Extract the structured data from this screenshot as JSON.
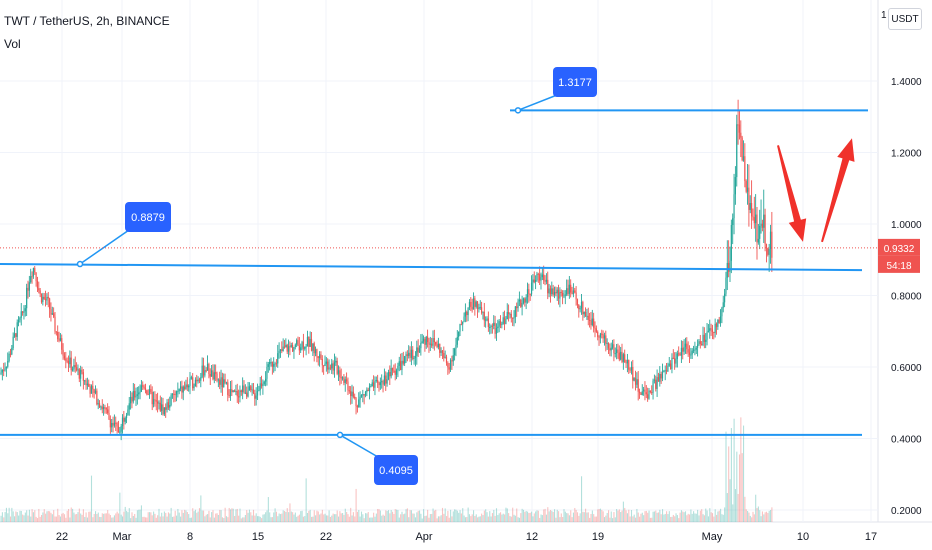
{
  "header": {
    "symbol": "TWT / TetherUS, 2h, BINANCE",
    "volume_label": "Vol",
    "currency": "USDT"
  },
  "colors": {
    "up": "#26a69a",
    "down": "#ef5350",
    "level_line": "#2196f3",
    "callout_bg": "#2962ff",
    "arrow": "#f0312b",
    "price_tag": "#ef5350"
  },
  "chart_data": {
    "type": "candlestick",
    "x_ticks": [
      "22",
      "Mar",
      "8",
      "15",
      "22",
      "Apr",
      "12",
      "19",
      "May",
      "10",
      "17"
    ],
    "y_ticks": [
      "0.2000",
      "0.4000",
      "0.6000",
      "0.8000",
      "1.0000",
      "1.2000",
      "1.4000"
    ],
    "y_range": [
      0.2,
      1.6
    ],
    "current_price": "0.9332",
    "countdown": "54:18",
    "top_partial_tick": "1",
    "callouts": [
      "0.8879",
      "1.3177",
      "0.4095"
    ],
    "levels": [
      {
        "label": "0.8879",
        "price_start": 0.888,
        "price_end": 0.871
      },
      {
        "label": "1.3177",
        "price_start": 1.318,
        "price_end": 1.318
      },
      {
        "label": "0.4095",
        "price_start": 0.41,
        "price_end": 0.41
      }
    ],
    "price_path": [
      [
        0,
        0.58
      ],
      [
        8,
        0.62
      ],
      [
        16,
        0.7
      ],
      [
        24,
        0.76
      ],
      [
        30,
        0.86
      ],
      [
        34,
        0.88
      ],
      [
        40,
        0.8
      ],
      [
        48,
        0.78
      ],
      [
        56,
        0.7
      ],
      [
        64,
        0.64
      ],
      [
        72,
        0.6
      ],
      [
        80,
        0.58
      ],
      [
        90,
        0.54
      ],
      [
        100,
        0.5
      ],
      [
        110,
        0.45
      ],
      [
        118,
        0.42
      ],
      [
        126,
        0.48
      ],
      [
        134,
        0.52
      ],
      [
        144,
        0.55
      ],
      [
        154,
        0.5
      ],
      [
        164,
        0.48
      ],
      [
        174,
        0.52
      ],
      [
        184,
        0.54
      ],
      [
        194,
        0.56
      ],
      [
        206,
        0.6
      ],
      [
        214,
        0.57
      ],
      [
        224,
        0.55
      ],
      [
        234,
        0.52
      ],
      [
        244,
        0.54
      ],
      [
        254,
        0.52
      ],
      [
        264,
        0.57
      ],
      [
        274,
        0.62
      ],
      [
        284,
        0.65
      ],
      [
        296,
        0.66
      ],
      [
        308,
        0.67
      ],
      [
        316,
        0.64
      ],
      [
        326,
        0.61
      ],
      [
        336,
        0.6
      ],
      [
        346,
        0.56
      ],
      [
        356,
        0.5
      ],
      [
        366,
        0.53
      ],
      [
        378,
        0.55
      ],
      [
        390,
        0.58
      ],
      [
        402,
        0.61
      ],
      [
        414,
        0.64
      ],
      [
        426,
        0.68
      ],
      [
        438,
        0.66
      ],
      [
        448,
        0.6
      ],
      [
        456,
        0.66
      ],
      [
        464,
        0.75
      ],
      [
        474,
        0.78
      ],
      [
        486,
        0.73
      ],
      [
        496,
        0.7
      ],
      [
        506,
        0.74
      ],
      [
        516,
        0.76
      ],
      [
        526,
        0.8
      ],
      [
        534,
        0.84
      ],
      [
        540,
        0.86
      ],
      [
        548,
        0.82
      ],
      [
        558,
        0.8
      ],
      [
        568,
        0.82
      ],
      [
        578,
        0.78
      ],
      [
        588,
        0.74
      ],
      [
        598,
        0.7
      ],
      [
        608,
        0.66
      ],
      [
        618,
        0.64
      ],
      [
        630,
        0.6
      ],
      [
        638,
        0.54
      ],
      [
        646,
        0.52
      ],
      [
        654,
        0.55
      ],
      [
        664,
        0.58
      ],
      [
        674,
        0.62
      ],
      [
        684,
        0.66
      ],
      [
        694,
        0.64
      ],
      [
        704,
        0.68
      ],
      [
        714,
        0.7
      ],
      [
        722,
        0.76
      ],
      [
        728,
        0.86
      ],
      [
        733,
        1.06
      ],
      [
        738,
        1.3
      ],
      [
        742,
        1.2
      ],
      [
        747,
        1.1
      ],
      [
        752,
        1.05
      ],
      [
        757,
        0.98
      ],
      [
        762,
        1.02
      ],
      [
        767,
        0.96
      ],
      [
        772,
        0.93
      ]
    ],
    "arrows": [
      {
        "from": [
          778,
          1.22
        ],
        "to": [
          803,
          0.95
        ],
        "shape": "down"
      },
      {
        "from": [
          822,
          0.95
        ],
        "to": [
          852,
          1.24
        ],
        "shape": "up"
      }
    ]
  }
}
